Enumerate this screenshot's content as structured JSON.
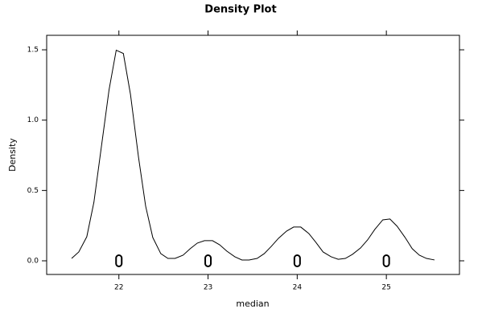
{
  "chart_data": {
    "type": "density",
    "title": "Density Plot",
    "x_label": "median",
    "y_label": "Density",
    "x": [
      21.47,
      21.55,
      21.64,
      21.72,
      21.8,
      21.89,
      21.97,
      22.05,
      22.13,
      22.22,
      22.3,
      22.38,
      22.47,
      22.55,
      22.63,
      22.72,
      22.8,
      22.88,
      22.96,
      23.05,
      23.13,
      23.21,
      23.3,
      23.38,
      23.46,
      23.55,
      23.63,
      23.71,
      23.79,
      23.88,
      23.96,
      24.04,
      24.13,
      24.21,
      24.29,
      24.38,
      24.46,
      24.54,
      24.62,
      24.71,
      24.79,
      24.87,
      24.96,
      25.04,
      25.12,
      25.21,
      25.29,
      25.37,
      25.45,
      25.54
    ],
    "values": [
      0.017,
      0.063,
      0.171,
      0.417,
      0.794,
      1.217,
      1.497,
      1.474,
      1.183,
      0.737,
      0.389,
      0.166,
      0.051,
      0.017,
      0.017,
      0.04,
      0.086,
      0.126,
      0.143,
      0.143,
      0.114,
      0.069,
      0.029,
      0.006,
      0.006,
      0.017,
      0.051,
      0.103,
      0.16,
      0.211,
      0.24,
      0.24,
      0.194,
      0.131,
      0.063,
      0.029,
      0.011,
      0.017,
      0.046,
      0.091,
      0.149,
      0.223,
      0.291,
      0.297,
      0.246,
      0.166,
      0.086,
      0.04,
      0.017,
      0.006
    ],
    "color": "#000000",
    "points": [
      22,
      23,
      24,
      25
    ],
    "xlim": [
      21.19,
      25.82
    ],
    "xticks": [
      22,
      23,
      24,
      25
    ],
    "ylim": [
      -0.097,
      1.603
    ],
    "yticks": [
      {
        "value": 0,
        "label": "0.0"
      },
      {
        "value": 0.5,
        "label": "0.5"
      },
      {
        "value": 1,
        "label": "1.0"
      },
      {
        "value": 1.5,
        "label": "1.5"
      }
    ]
  }
}
